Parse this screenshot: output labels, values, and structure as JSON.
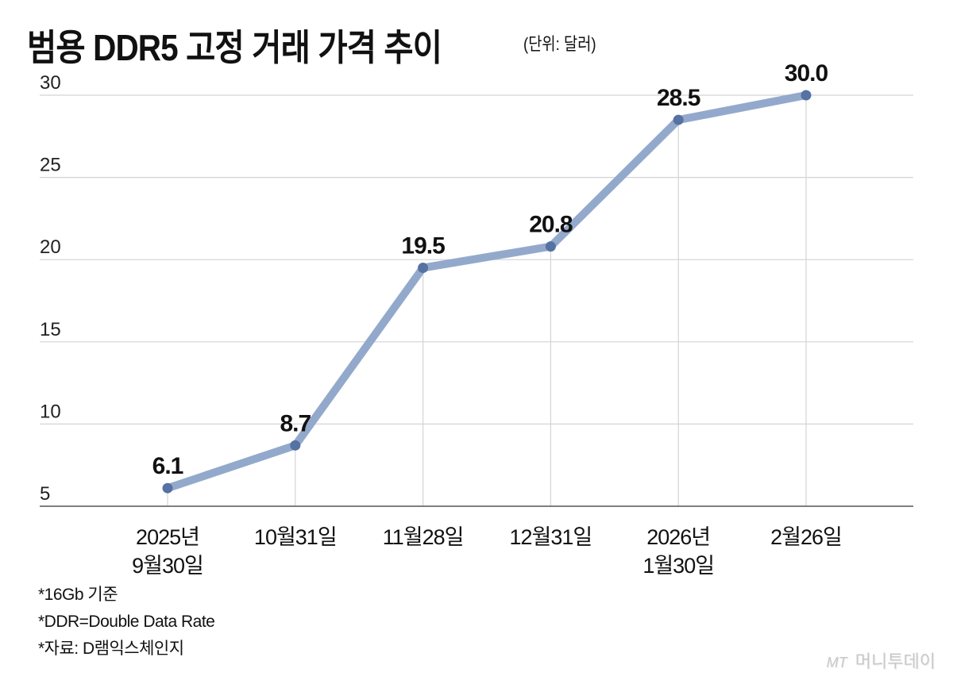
{
  "title": "범용 DDR5 고정 거래 가격 추이",
  "unit": "(단위: 달러)",
  "notes": [
    "*16Gb 기준",
    "*DDR=Double Data Rate",
    "*자료: D램익스체인지"
  ],
  "watermark": {
    "logo": "MT",
    "name": "머니투데이"
  },
  "colors": {
    "line": "#93a9cc",
    "marker": "#5572a3",
    "grid": "#d4d4d4",
    "axis": "#555555"
  },
  "chart_data": {
    "type": "line",
    "title": "범용 DDR5 고정 거래 가격 추이",
    "subtitle": "(단위: 달러)",
    "xlabel": "",
    "ylabel": "달러",
    "ylim": [
      5,
      30
    ],
    "yticks": [
      "5",
      "10",
      "15",
      "20",
      "25",
      "30"
    ],
    "grid": true,
    "legend": "none",
    "categories": [
      [
        "2025년",
        "9월30일"
      ],
      [
        "10월31일"
      ],
      [
        "11월28일"
      ],
      [
        "12월31일"
      ],
      [
        "2026년",
        "1월30일"
      ],
      [
        "2월26일"
      ]
    ],
    "series": [
      {
        "name": "범용 DDR5 고정 거래 가격",
        "values": [
          6.1,
          8.7,
          19.5,
          20.8,
          28.5,
          30.0
        ],
        "labels": [
          "6.1",
          "8.7",
          "19.5",
          "20.8",
          "28.5",
          "30.0"
        ]
      }
    ],
    "annotations": [
      "*16Gb 기준",
      "*DDR=Double Data Rate",
      "*자료: D램익스체인지"
    ]
  }
}
